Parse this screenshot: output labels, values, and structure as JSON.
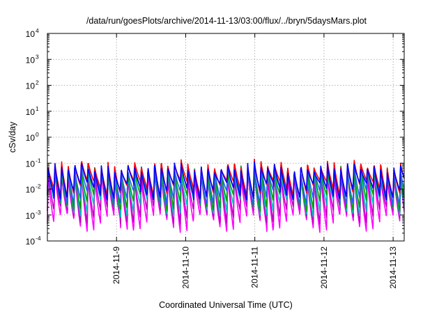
{
  "chart_data": {
    "type": "line",
    "title": "/data/run/goesPlots/archive/2014-11-13/03:00/flux/../bryn/5daysMars.plot",
    "xlabel": "Coordinated Universal Time (UTC)",
    "ylabel": "cSv/day",
    "yscale": "log",
    "ylim_exponent": [
      -4,
      4
    ],
    "ytick_exponents": [
      -4,
      -3,
      -2,
      -1,
      0,
      1,
      2,
      3,
      4
    ],
    "ytick_base": "10",
    "xlim_days": [
      8.0,
      13.16
    ],
    "xticks": [
      {
        "label": "2014-11-9",
        "day": 9
      },
      {
        "label": "2014-11-10",
        "day": 10
      },
      {
        "label": "2014-11-11",
        "day": 11
      },
      {
        "label": "2014-11-12",
        "day": 12
      },
      {
        "label": "2014-11-13",
        "day": 13
      }
    ],
    "grid": true,
    "legend": "none",
    "cycles_per_day": 10.4,
    "series": [
      {
        "color": "#ff00ff",
        "peak": 0.04,
        "trough": 0.00045
      },
      {
        "color": "#c000c0",
        "peak": 0.048,
        "trough": 0.0009
      },
      {
        "color": "#00c0c0",
        "peak": 0.055,
        "trough": 0.0018
      },
      {
        "color": "#00a000",
        "peak": 0.065,
        "trough": 0.003
      },
      {
        "color": "#2060ff",
        "peak": 0.072,
        "trough": 0.005
      },
      {
        "color": "#ff0000",
        "peak": 0.095,
        "trough": 0.01
      },
      {
        "color": "#0000ff",
        "peak": 0.075,
        "trough": 0.008
      }
    ]
  }
}
